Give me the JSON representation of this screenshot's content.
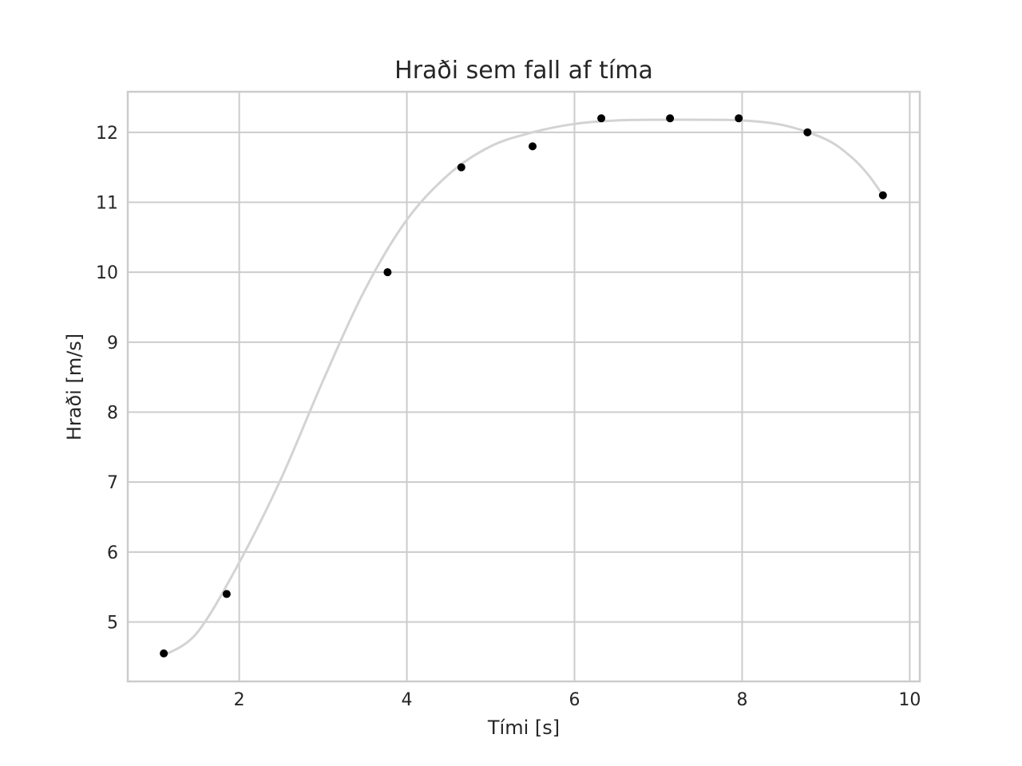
{
  "chart_data": {
    "type": "scatter",
    "title": "Hraði sem fall af tíma",
    "xlabel": "Tími [s]",
    "ylabel": "Hraði [m/s]",
    "xlim": [
      0.67,
      10.12
    ],
    "ylim": [
      4.15,
      12.58
    ],
    "xticks": [
      2,
      4,
      6,
      8,
      10
    ],
    "yticks": [
      5,
      6,
      7,
      8,
      9,
      10,
      11,
      12
    ],
    "grid": true,
    "series": [
      {
        "kind": "points",
        "color": "#000000",
        "x": [
          1.1,
          1.85,
          3.77,
          4.65,
          5.5,
          6.32,
          7.14,
          7.96,
          8.78,
          9.68
        ],
        "y": [
          4.55,
          5.4,
          10.0,
          11.5,
          11.8,
          12.2,
          12.2,
          12.2,
          12.0,
          11.1
        ]
      },
      {
        "kind": "fitted-curve",
        "color": "#d3d3d3",
        "x": [
          1.1,
          1.5,
          2.0,
          2.5,
          3.0,
          3.5,
          4.0,
          4.5,
          5.0,
          5.5,
          6.0,
          6.5,
          7.0,
          7.5,
          8.0,
          8.5,
          9.0,
          9.3,
          9.5,
          9.68
        ],
        "y": [
          4.52,
          4.85,
          5.85,
          7.05,
          8.45,
          9.75,
          10.75,
          11.4,
          11.8,
          12.0,
          12.12,
          12.17,
          12.18,
          12.18,
          12.17,
          12.1,
          11.9,
          11.65,
          11.4,
          11.1
        ]
      }
    ]
  }
}
